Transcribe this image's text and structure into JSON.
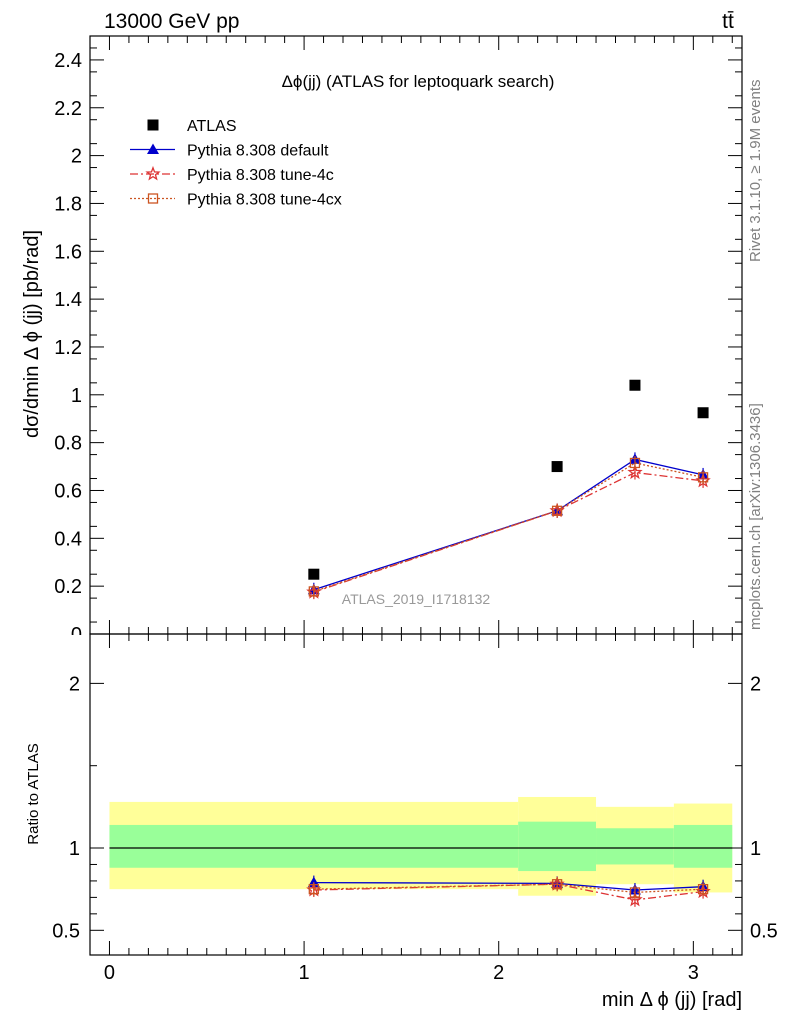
{
  "header": {
    "energy_label": "13000 GeV pp",
    "process_label": "tt̄"
  },
  "side_labels": {
    "rivet": "Rivet 3.1.10, ≥ 1.9M events",
    "source": "mcplots.cern.ch [arXiv:1306.3436]"
  },
  "chart_data": [
    {
      "type": "line",
      "title": "Δϕ(jj) (ATLAS for leptoquark search)",
      "watermark": "ATLAS_2019_I1718132",
      "ylabel": "dσ/dmin Δ ϕ (jj) [pb/rad]",
      "xlim": [
        -0.1,
        3.25
      ],
      "ylim": [
        0,
        2.5
      ],
      "yticks": [
        0,
        0.2,
        0.4,
        0.6,
        0.8,
        1,
        1.2,
        1.4,
        1.6,
        1.8,
        2,
        2.2,
        2.4
      ],
      "ytick_labels": [
        "0",
        "0.2",
        "0.4",
        "0.6",
        "0.8",
        "1",
        "1.2",
        "1.4",
        "1.6",
        "1.8",
        "2",
        "2.2",
        "2.4"
      ],
      "legend_position": "top-left",
      "data": {
        "name": "ATLAS",
        "x": [
          1.05,
          2.3,
          2.7,
          3.05
        ],
        "y": [
          0.25,
          0.7,
          1.04,
          0.925
        ],
        "color": "#000000"
      },
      "series": [
        {
          "name": "Pythia 8.308 default",
          "x": [
            1.05,
            2.3,
            2.7,
            3.05
          ],
          "y": [
            0.185,
            0.515,
            0.73,
            0.665
          ],
          "color": "#0000cc",
          "marker": "triangle",
          "dash": "none"
        },
        {
          "name": "Pythia 8.308 tune-4c",
          "x": [
            1.05,
            2.3,
            2.7,
            3.05
          ],
          "y": [
            0.175,
            0.515,
            0.675,
            0.64
          ],
          "color": "#dd3333",
          "marker": "star",
          "dash": "8,3,2,3"
        },
        {
          "name": "Pythia 8.308 tune-4cx",
          "x": [
            1.05,
            2.3,
            2.7,
            3.05
          ],
          "y": [
            0.178,
            0.515,
            0.715,
            0.655
          ],
          "color": "#cc5522",
          "marker": "square-open",
          "dash": "2,2"
        }
      ]
    },
    {
      "type": "line",
      "ylabel": "Ratio to ATLAS",
      "xlabel": "min Δ ϕ (jj) [rad]",
      "xlim": [
        -0.1,
        3.25
      ],
      "ylim": [
        0.35,
        2.3
      ],
      "xticks": [
        0,
        1,
        2,
        3
      ],
      "xtick_labels": [
        "0",
        "1",
        "2",
        "3"
      ],
      "yticks": [
        0.5,
        1,
        2
      ],
      "ytick_labels": [
        "0.5",
        "1",
        "2"
      ],
      "uncertainty_bands": {
        "edges": [
          0,
          2.1,
          2.5,
          2.9,
          3.2
        ],
        "inner": [
          [
            0.88,
            1.14
          ],
          [
            0.86,
            1.16
          ],
          [
            0.9,
            1.12
          ],
          [
            0.88,
            1.14
          ]
        ],
        "outer": [
          [
            0.75,
            1.28
          ],
          [
            0.71,
            1.31
          ],
          [
            0.78,
            1.25
          ],
          [
            0.73,
            1.27
          ]
        ],
        "inner_color": "#99ff99",
        "outer_color": "#ffff99"
      },
      "series": [
        {
          "name": "Pythia 8.308 default",
          "x": [
            1.05,
            2.3,
            2.7,
            3.05
          ],
          "y": [
            0.79,
            0.785,
            0.745,
            0.765
          ],
          "color": "#0000cc",
          "marker": "triangle",
          "dash": "none"
        },
        {
          "name": "Pythia 8.308 tune-4c",
          "x": [
            1.05,
            2.3,
            2.7,
            3.05
          ],
          "y": [
            0.745,
            0.78,
            0.685,
            0.735
          ],
          "color": "#dd3333",
          "marker": "star",
          "dash": "8,3,2,3"
        },
        {
          "name": "Pythia 8.308 tune-4cx",
          "x": [
            1.05,
            2.3,
            2.7,
            3.05
          ],
          "y": [
            0.75,
            0.78,
            0.73,
            0.75
          ],
          "color": "#cc5522",
          "marker": "square-open",
          "dash": "2,2"
        }
      ]
    }
  ]
}
